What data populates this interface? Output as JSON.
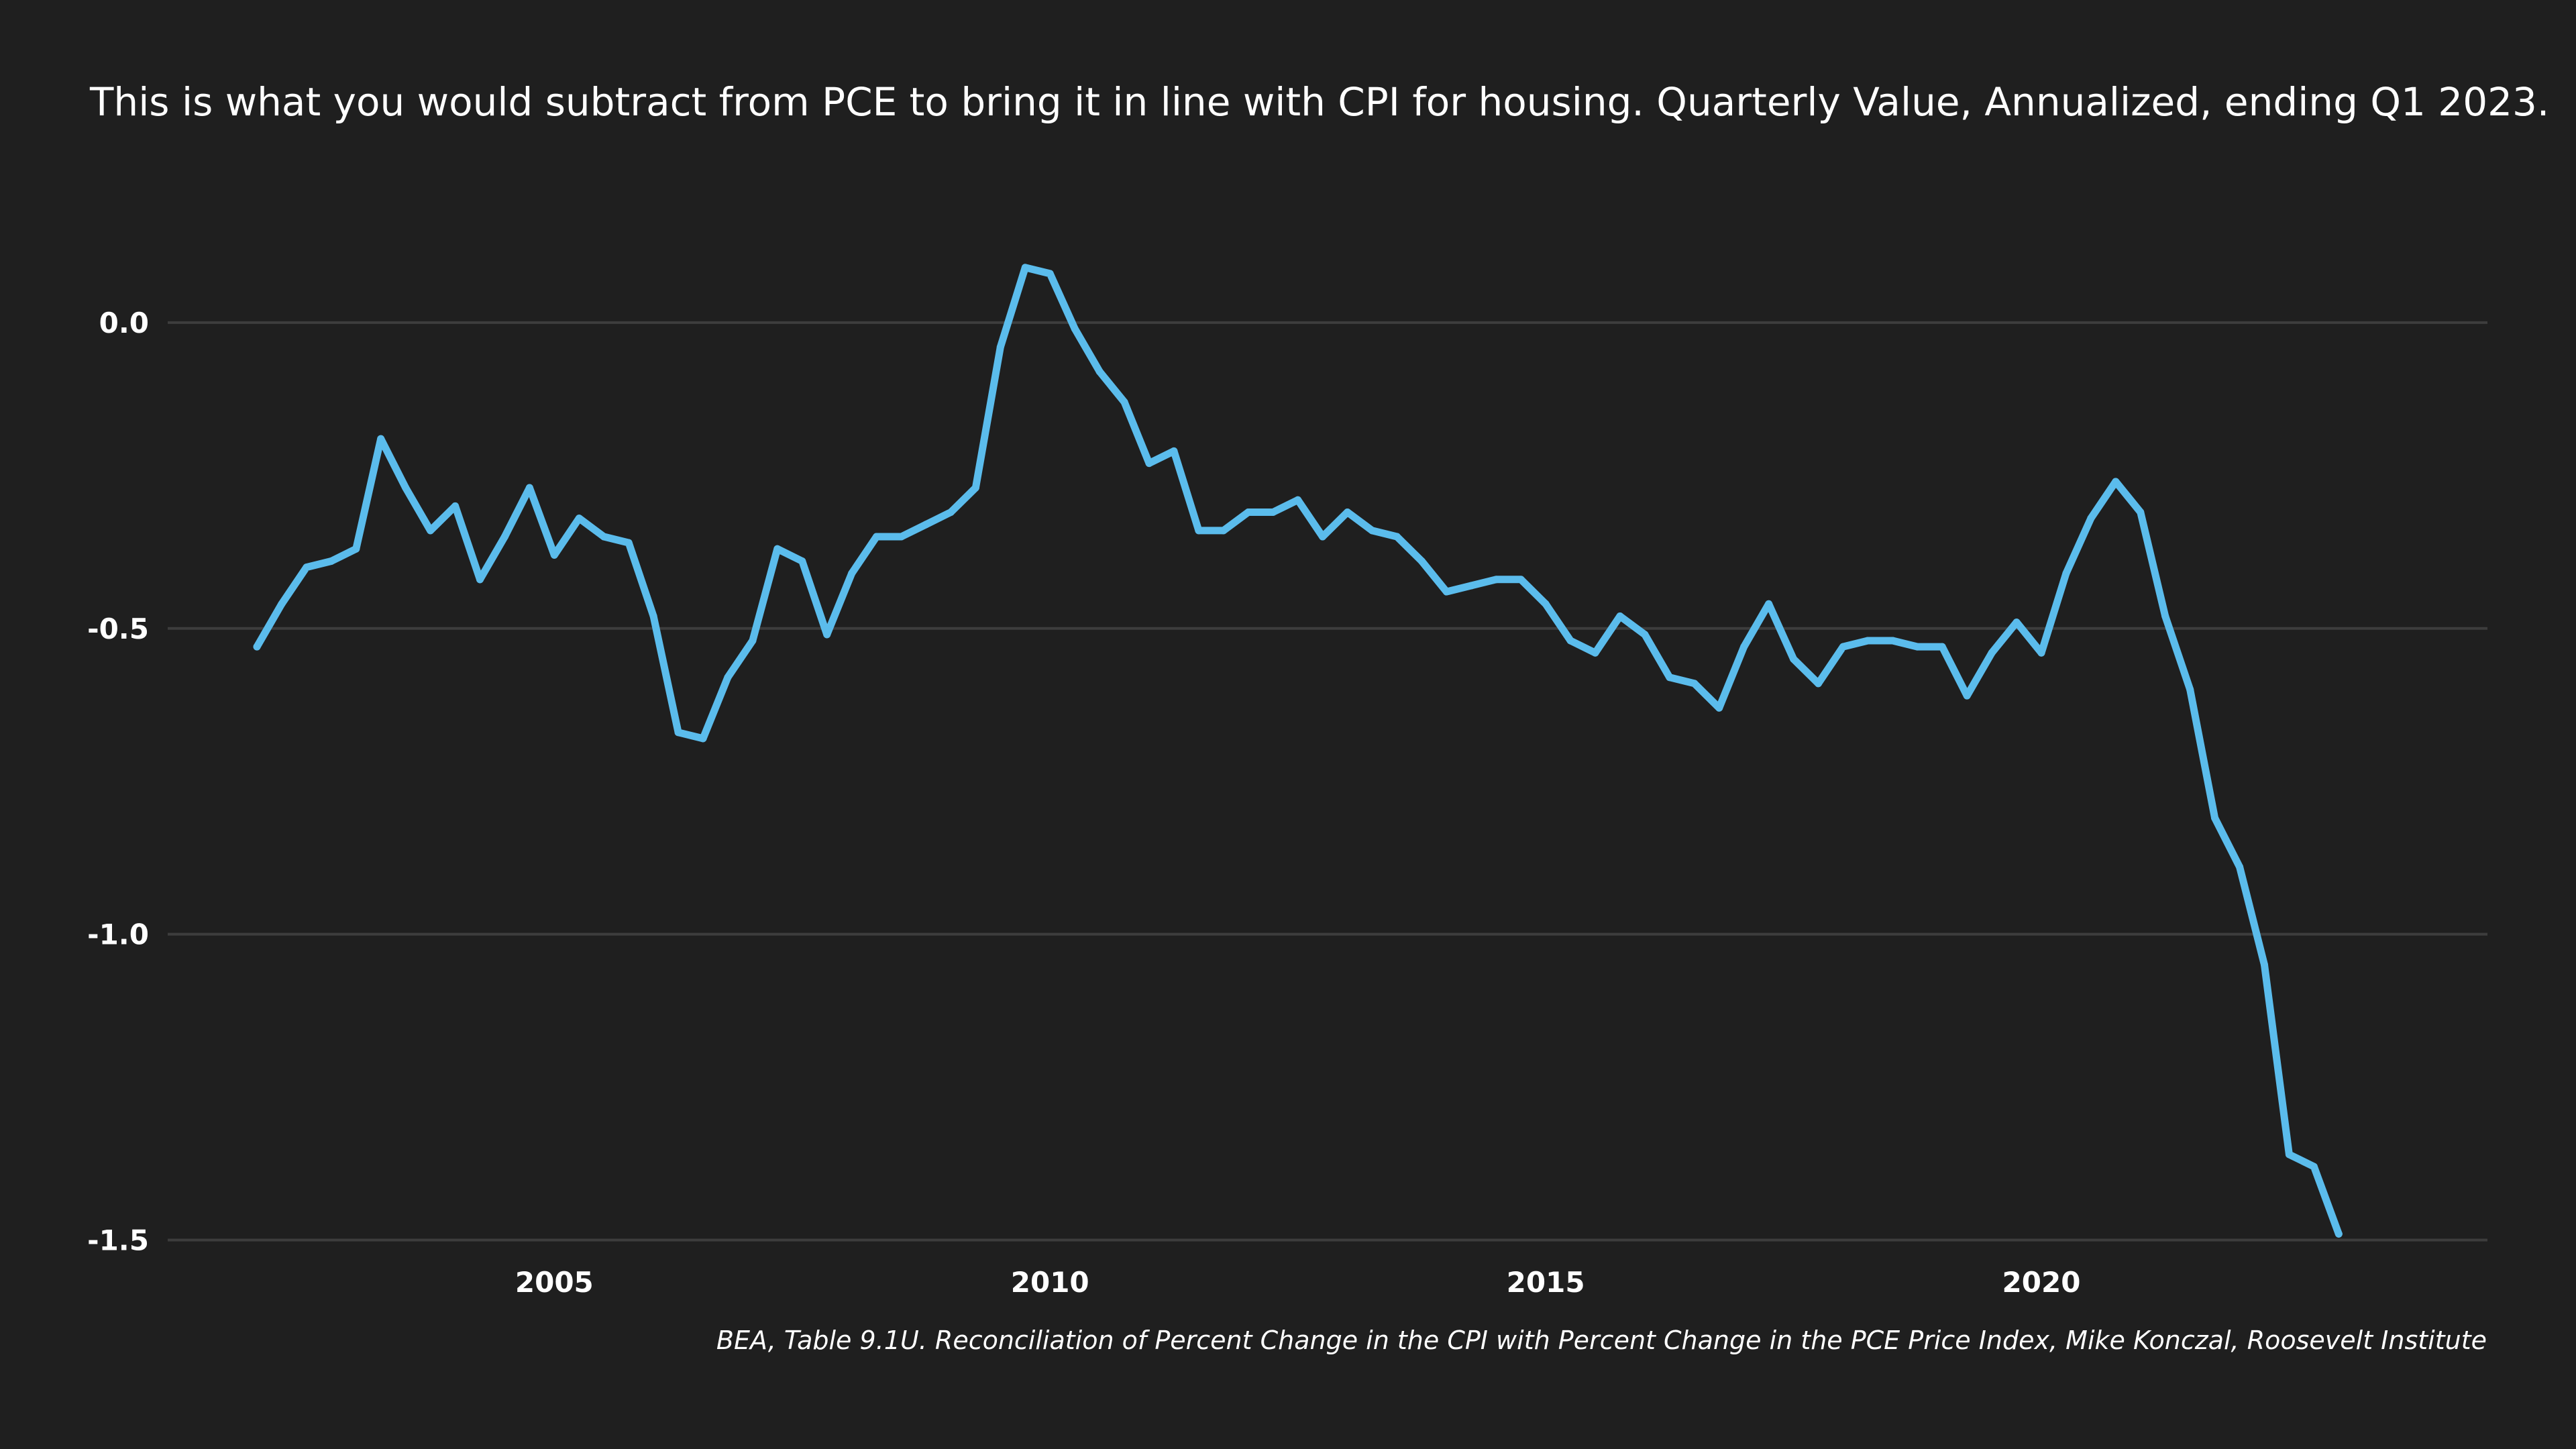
{
  "chart_data": {
    "type": "line",
    "title": "This is what you would subtract from PCE to bring it in line with CPI for housing. Quarterly Value, Annualized, ending Q1 2023.",
    "source": "BEA, Table 9.1U. Reconciliation of Percent Change in the CPI with Percent Change in the PCE Price Index, Mike Konczal, Roosevelt Institute",
    "xlabel": "",
    "ylabel": "",
    "xlim": [
      2001.1,
      2024.5
    ],
    "ylim": [
      -1.54,
      0.16
    ],
    "x_ticks": [
      2005,
      2010,
      2015,
      2020
    ],
    "x_tick_labels": [
      "2005",
      "2010",
      "2015",
      "2020"
    ],
    "y_ticks": [
      0.0,
      -0.5,
      -1.0,
      -1.5
    ],
    "y_tick_labels": [
      "0.0",
      "-0.5",
      "-1.0",
      "-1.5"
    ],
    "grid": "horizontal",
    "line_color": "#5bbcec",
    "grid_color": "#3d3d3d",
    "background": "#1f1f1f",
    "series": [
      {
        "x": [
          2002.0,
          2002.25,
          2002.5,
          2002.75,
          2003.0,
          2003.25,
          2003.5,
          2003.75,
          2004.0,
          2004.25,
          2004.5,
          2004.75,
          2005.0,
          2005.25,
          2005.5,
          2005.75,
          2006.0,
          2006.25,
          2006.5,
          2006.75,
          2007.0,
          2007.25,
          2007.5,
          2007.75,
          2008.0,
          2008.25,
          2008.5,
          2008.75,
          2009.0,
          2009.25,
          2009.5,
          2009.75,
          2010.0,
          2010.25,
          2010.5,
          2010.75,
          2011.0,
          2011.25,
          2011.5,
          2011.75,
          2012.0,
          2012.25,
          2012.5,
          2012.75,
          2013.0,
          2013.25,
          2013.5,
          2013.75,
          2014.0,
          2014.25,
          2014.5,
          2014.75,
          2015.0,
          2015.25,
          2015.5,
          2015.75,
          2016.0,
          2016.25,
          2016.5,
          2016.75,
          2017.0,
          2017.25,
          2017.5,
          2017.75,
          2018.0,
          2018.25,
          2018.5,
          2018.75,
          2019.0,
          2019.25,
          2019.5,
          2019.75,
          2020.0,
          2020.25,
          2020.5,
          2020.75,
          2021.0,
          2021.25,
          2021.5,
          2021.75,
          2022.0,
          2022.25,
          2022.5,
          2022.75,
          2023.0
        ],
        "y": [
          -0.53,
          -0.46,
          -0.4,
          -0.39,
          -0.37,
          -0.19,
          -0.27,
          -0.34,
          -0.3,
          -0.42,
          -0.35,
          -0.27,
          -0.38,
          -0.32,
          -0.35,
          -0.36,
          -0.48,
          -0.67,
          -0.68,
          -0.58,
          -0.52,
          -0.37,
          -0.39,
          -0.51,
          -0.41,
          -0.35,
          -0.35,
          -0.33,
          -0.31,
          -0.27,
          -0.04,
          0.09,
          0.08,
          -0.01,
          -0.08,
          -0.13,
          -0.23,
          -0.21,
          -0.34,
          -0.34,
          -0.31,
          -0.31,
          -0.29,
          -0.35,
          -0.31,
          -0.34,
          -0.35,
          -0.39,
          -0.44,
          -0.43,
          -0.42,
          -0.42,
          -0.46,
          -0.52,
          -0.54,
          -0.48,
          -0.51,
          -0.58,
          -0.59,
          -0.63,
          -0.53,
          -0.46,
          -0.55,
          -0.59,
          -0.53,
          -0.52,
          -0.52,
          -0.53,
          -0.53,
          -0.61,
          -0.54,
          -0.49,
          -0.54,
          -0.41,
          -0.32,
          -0.26,
          -0.31,
          -0.48,
          -0.6,
          -0.81,
          -0.89,
          -1.05,
          -1.36,
          -1.38,
          -1.49
        ]
      }
    ]
  }
}
